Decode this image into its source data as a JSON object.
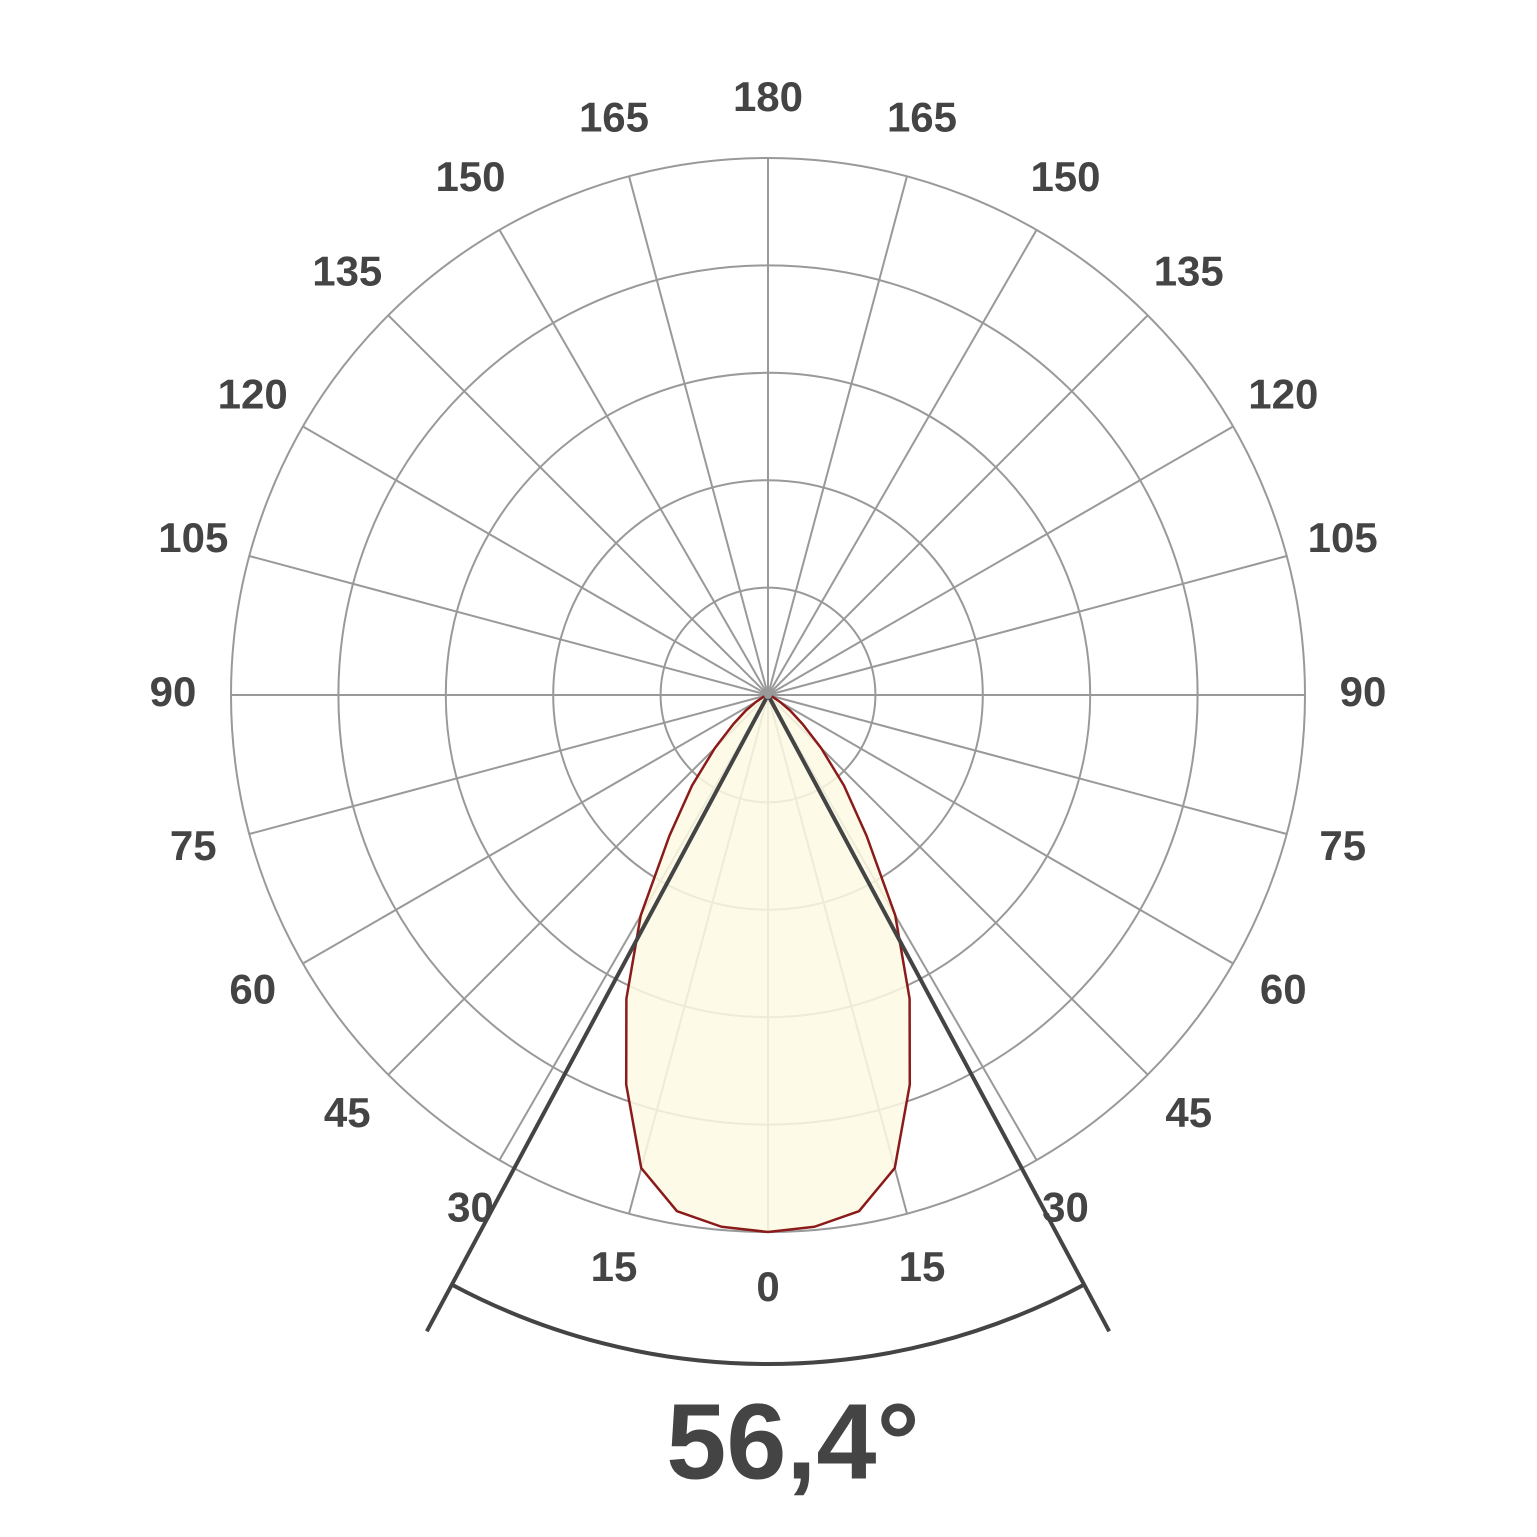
{
  "chart_data": {
    "type": "polar",
    "theta": [
      0,
      5,
      10,
      15,
      20,
      25,
      30,
      35,
      40,
      45,
      50,
      55,
      60,
      65,
      70,
      75,
      80,
      85,
      90
    ],
    "values": [
      5.0,
      4.97,
      4.88,
      4.56,
      3.86,
      3.12,
      2.37,
      1.6,
      1.1,
      0.7,
      0.42,
      0.25,
      0.13,
      0.06,
      0.03,
      0.01,
      0,
      0,
      0
    ],
    "color": "#8b1a1a",
    "fill": "#fdfae3",
    "rlim": [
      0,
      5
    ],
    "rticks": [
      1,
      2,
      3,
      4,
      5
    ],
    "angle_ticks": [
      0,
      15,
      30,
      45,
      60,
      75,
      90,
      105,
      120,
      135,
      150,
      165,
      180
    ],
    "beam_angle": {
      "value": 56.4,
      "label": "56,4°"
    },
    "grid": true
  }
}
